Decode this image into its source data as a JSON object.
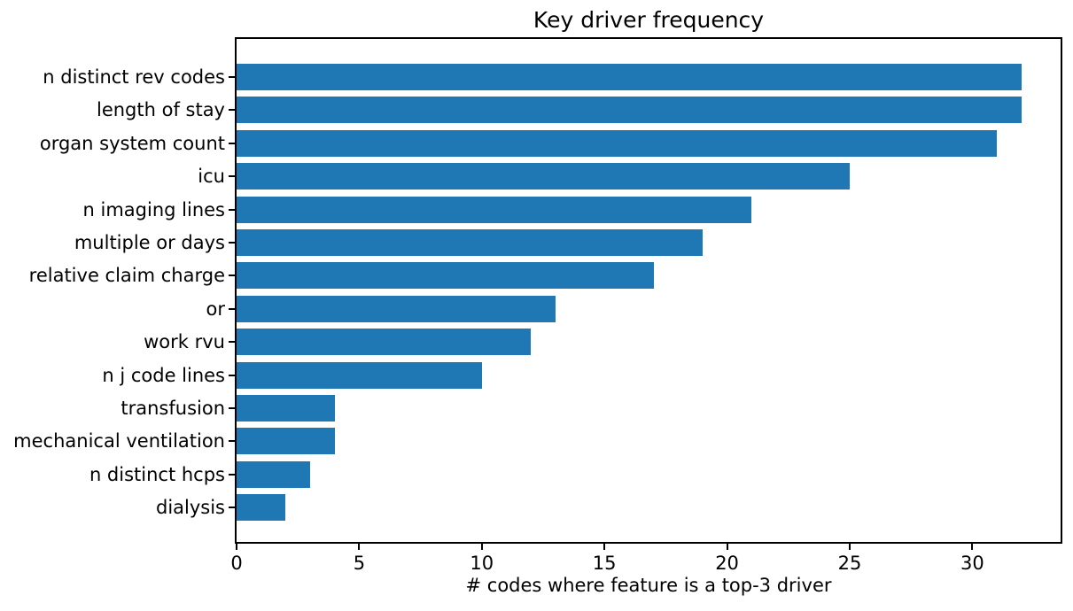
{
  "chart_data": {
    "type": "bar",
    "orientation": "horizontal",
    "title": "Key driver frequency",
    "xlabel": "# codes where feature is a top-3 driver",
    "ylabel": "",
    "categories": [
      "n distinct rev codes",
      "length of stay",
      "organ system count",
      "icu",
      "n imaging lines",
      "multiple or days",
      "relative claim charge",
      "or",
      "work rvu",
      "n j code lines",
      "transfusion",
      "mechanical ventilation",
      "n distinct hcps",
      "dialysis"
    ],
    "values": [
      32,
      32,
      31,
      25,
      21,
      19,
      17,
      13,
      12,
      10,
      4,
      4,
      3,
      2
    ],
    "xticks": [
      0,
      5,
      10,
      15,
      20,
      25,
      30
    ],
    "xlim": [
      0,
      33.6
    ],
    "grid": false,
    "legend": null,
    "colors": {
      "bar": "#1f77b4",
      "spine": "#000000",
      "text": "#000000",
      "background": "#ffffff"
    }
  }
}
